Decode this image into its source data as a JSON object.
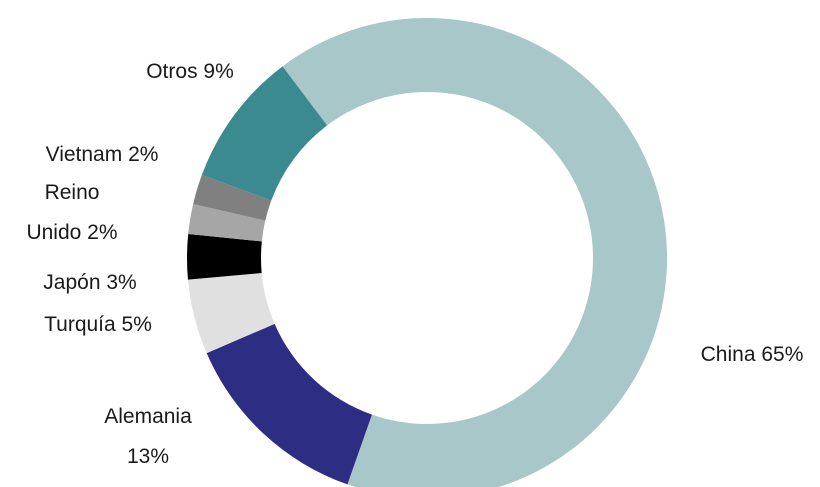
{
  "chart_data": {
    "type": "donut",
    "categories": [
      "China",
      "Alemania",
      "Turquía",
      "Japón",
      "Reino Unido",
      "Vietnam",
      "Otros"
    ],
    "values": [
      65,
      13,
      5,
      3,
      2,
      2,
      9
    ],
    "value_labels": [
      "65%",
      "13%",
      "5%",
      "3%",
      "2%",
      "2%",
      "9%"
    ],
    "colors": [
      "#a7c7c9",
      "#2e2d84",
      "#e0e0e0",
      "#000000",
      "#a6a6a6",
      "#808080",
      "#3a8a90"
    ]
  }
}
